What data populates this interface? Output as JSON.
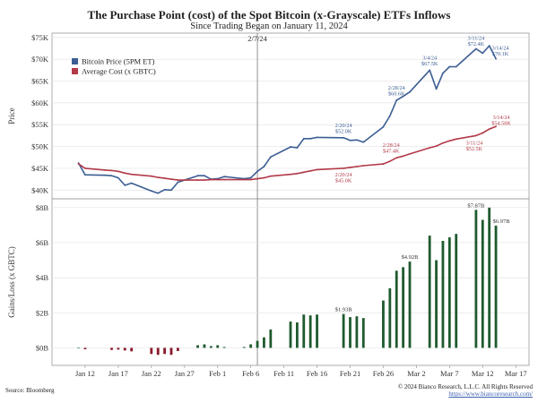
{
  "title": "The Purchase Point (cost) of the Spot Bitcoin (x-Grayscale) ETFs Inflows",
  "subtitle": "Since Trading Began on January 11, 2024",
  "source": "Source: Bloomberg",
  "copyright": "© 2024 Bianco Research, L.L.C. All Rights Reserved",
  "url": "https://www.biancoresearch.com/",
  "colors": {
    "btc": "#3b5d93",
    "cost": "#b23a48",
    "gain": "#1f5a2e",
    "loss": "#8b1a2b",
    "vline": "#777777"
  },
  "chart_data": [
    {
      "type": "line",
      "title": "The Purchase Point (cost) of the Spot Bitcoin (x-Grayscale) ETFs Inflows",
      "ylabel": "Price",
      "ylim": [
        38000,
        76000
      ],
      "yticks": [
        40000,
        45000,
        50000,
        55000,
        60000,
        65000,
        70000,
        75000
      ],
      "ytick_labels": [
        "$40K",
        "$45K",
        "$50K",
        "$55K",
        "$60K",
        "$65K",
        "$70K",
        "$75K"
      ],
      "legend": [
        "Bitcoin Price (5PM ET)",
        "Average Cost  (x GBTC)"
      ],
      "legend_position": "top-left",
      "vline": {
        "x": "2024-02-07",
        "label": "2/7/24"
      },
      "x": [
        "2024-01-11",
        "2024-01-12",
        "2024-01-15",
        "2024-01-16",
        "2024-01-17",
        "2024-01-18",
        "2024-01-19",
        "2024-01-22",
        "2024-01-23",
        "2024-01-24",
        "2024-01-25",
        "2024-01-26",
        "2024-01-29",
        "2024-01-30",
        "2024-01-31",
        "2024-02-01",
        "2024-02-02",
        "2024-02-05",
        "2024-02-06",
        "2024-02-07",
        "2024-02-08",
        "2024-02-09",
        "2024-02-12",
        "2024-02-13",
        "2024-02-14",
        "2024-02-15",
        "2024-02-16",
        "2024-02-20",
        "2024-02-21",
        "2024-02-22",
        "2024-02-23",
        "2024-02-26",
        "2024-02-27",
        "2024-02-28",
        "2024-02-29",
        "2024-03-01",
        "2024-03-04",
        "2024-03-05",
        "2024-03-06",
        "2024-03-07",
        "2024-03-08",
        "2024-03-11",
        "2024-03-12",
        "2024-03-13",
        "2024-03-14"
      ],
      "series": [
        {
          "name": "Bitcoin Price (5PM ET)",
          "values": [
            46200,
            43500,
            43400,
            43300,
            42800,
            41100,
            41600,
            39800,
            39300,
            40100,
            40000,
            41800,
            43300,
            43300,
            42500,
            42600,
            43100,
            42600,
            42800,
            44300,
            45400,
            47600,
            49900,
            49700,
            51800,
            51800,
            52100,
            52000,
            51400,
            51500,
            51000,
            54500,
            57000,
            60600,
            61500,
            62500,
            67500,
            63200,
            66800,
            68300,
            68300,
            72400,
            71400,
            73100,
            70100
          ]
        },
        {
          "name": "Average Cost  (x GBTC)",
          "values": [
            46000,
            45000,
            44600,
            44500,
            44300,
            43900,
            43600,
            43200,
            42900,
            42700,
            42500,
            42300,
            42300,
            42300,
            42400,
            42400,
            42400,
            42400,
            42400,
            42600,
            42800,
            43200,
            43600,
            43800,
            44100,
            44400,
            44700,
            45000,
            45200,
            45400,
            45600,
            46000,
            46600,
            47400,
            47800,
            48300,
            49700,
            50100,
            50800,
            51300,
            51700,
            52500,
            53100,
            54000,
            54600
          ]
        }
      ],
      "annotations": [
        {
          "series": "Bitcoin Price (5PM ET)",
          "x": "2024-02-20",
          "date": "2/20/24",
          "value": "$52.0K"
        },
        {
          "series": "Bitcoin Price (5PM ET)",
          "x": "2024-02-28",
          "date": "2/28/24",
          "value": "$60.6K"
        },
        {
          "series": "Bitcoin Price (5PM ET)",
          "x": "2024-03-04",
          "date": "3/4/24",
          "value": "$67.5K"
        },
        {
          "series": "Bitcoin Price (5PM ET)",
          "x": "2024-03-11",
          "date": "3/11/24",
          "value": "$72.4K"
        },
        {
          "series": "Bitcoin Price (5PM ET)",
          "x": "2024-03-14",
          "date": "3/14/24",
          "value": "$70.1K"
        },
        {
          "series": "Average Cost  (x GBTC)",
          "x": "2024-02-20",
          "date": "2/20/24",
          "value": "$45.0K"
        },
        {
          "series": "Average Cost  (x GBTC)",
          "x": "2024-02-28",
          "date": "2/28/24",
          "value": "$47.4K"
        },
        {
          "series": "Average Cost  (x GBTC)",
          "x": "2024-03-11",
          "date": "3/11/24",
          "value": "$52.5K"
        },
        {
          "series": "Average Cost  (x GBTC)",
          "x": "2024-03-14",
          "date": "3/14/24",
          "value": "$54.58K"
        }
      ]
    },
    {
      "type": "bar",
      "ylabel": "Gains/Loss  (x GBTC)",
      "ylim": [
        -1,
        8.5
      ],
      "yticks": [
        0,
        2,
        4,
        6,
        8
      ],
      "ytick_labels": [
        "$0B",
        "$2B",
        "$4B",
        "$6B",
        "$8B"
      ],
      "xtick_labels": [
        "Jan 12",
        "Jan 17",
        "Jan 22",
        "Jan 27",
        "Feb 1",
        "Feb 6",
        "Feb 11",
        "Feb 16",
        "Feb 21",
        "Feb 26",
        "Mar 2",
        "Mar 7",
        "Mar 12",
        "Mar 17"
      ],
      "xticks": [
        "2024-01-12",
        "2024-01-17",
        "2024-01-22",
        "2024-01-27",
        "2024-02-01",
        "2024-02-06",
        "2024-02-11",
        "2024-02-16",
        "2024-02-21",
        "2024-02-26",
        "2024-03-02",
        "2024-03-07",
        "2024-03-12",
        "2024-03-17"
      ],
      "x": [
        "2024-01-11",
        "2024-01-12",
        "2024-01-16",
        "2024-01-17",
        "2024-01-18",
        "2024-01-19",
        "2024-01-22",
        "2024-01-23",
        "2024-01-24",
        "2024-01-25",
        "2024-01-26",
        "2024-01-29",
        "2024-01-30",
        "2024-01-31",
        "2024-02-01",
        "2024-02-02",
        "2024-02-05",
        "2024-02-06",
        "2024-02-07",
        "2024-02-08",
        "2024-02-09",
        "2024-02-12",
        "2024-02-13",
        "2024-02-14",
        "2024-02-15",
        "2024-02-16",
        "2024-02-20",
        "2024-02-21",
        "2024-02-22",
        "2024-02-23",
        "2024-02-26",
        "2024-02-27",
        "2024-02-28",
        "2024-02-29",
        "2024-03-01",
        "2024-03-04",
        "2024-03-05",
        "2024-03-06",
        "2024-03-07",
        "2024-03-08",
        "2024-03-11",
        "2024-03-12",
        "2024-03-13",
        "2024-03-14"
      ],
      "values": [
        0.02,
        -0.08,
        -0.12,
        -0.1,
        -0.15,
        -0.2,
        -0.35,
        -0.4,
        -0.35,
        -0.4,
        -0.18,
        0.15,
        0.2,
        0.1,
        0.15,
        0.05,
        0.05,
        0.2,
        0.4,
        0.6,
        1.05,
        1.5,
        1.45,
        1.9,
        1.85,
        1.9,
        1.93,
        1.75,
        1.8,
        1.7,
        2.7,
        3.4,
        4.4,
        4.6,
        4.92,
        6.4,
        5.0,
        6.1,
        6.3,
        6.5,
        7.87,
        7.3,
        8.0,
        6.97
      ],
      "annotations": [
        {
          "x": "2024-02-20",
          "label": "$1.93B"
        },
        {
          "x": "2024-03-01",
          "label": "$4.92B"
        },
        {
          "x": "2024-03-11",
          "label": "$7.87B"
        },
        {
          "x": "2024-03-14",
          "label": "$6.97B"
        }
      ]
    }
  ]
}
